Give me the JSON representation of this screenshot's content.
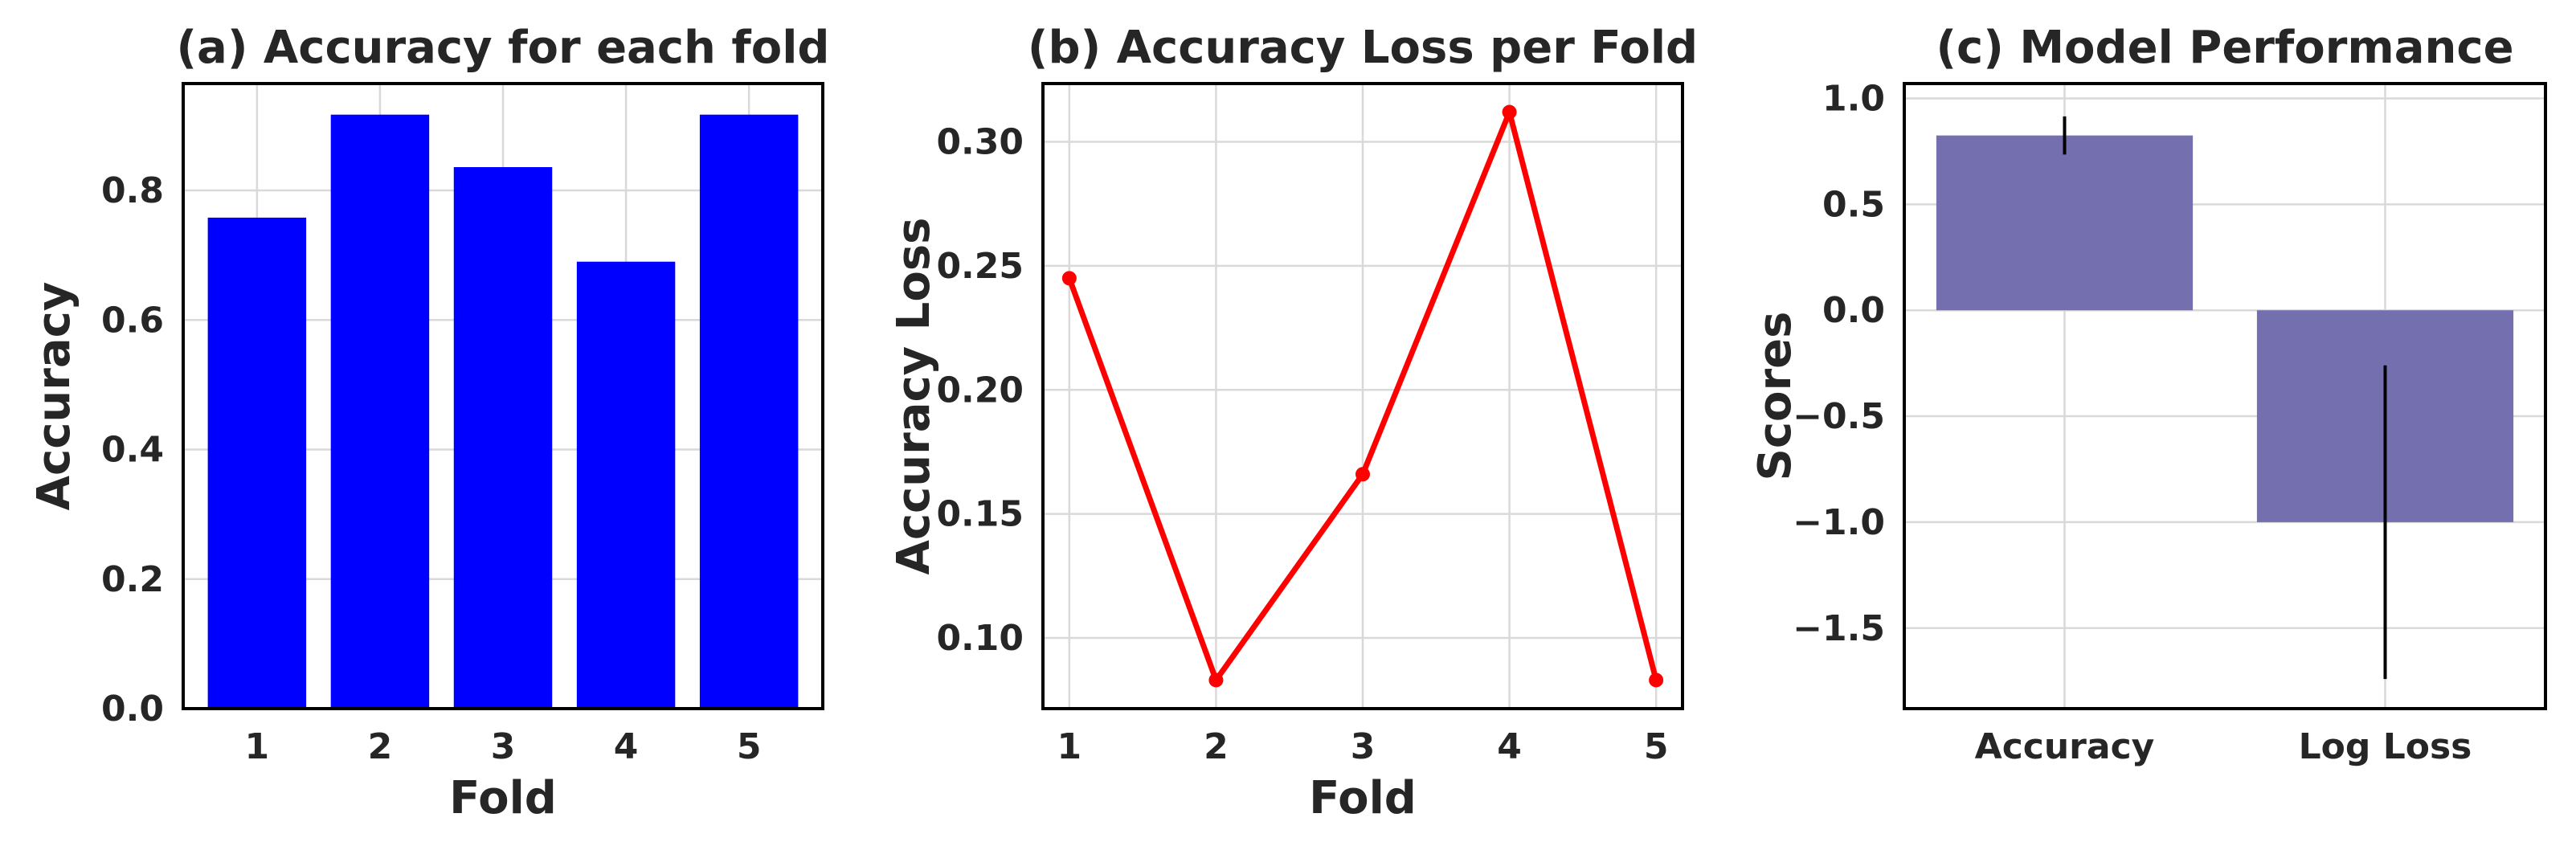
{
  "chart_data": [
    {
      "type": "bar",
      "title": "(a) Accuracy for each fold",
      "xlabel": "Fold",
      "ylabel": "Accuracy",
      "categories": [
        "1",
        "2",
        "3",
        "4",
        "5"
      ],
      "values": [
        0.758,
        0.917,
        0.836,
        0.69,
        0.917
      ],
      "ylim": [
        0,
        0.965
      ],
      "yticks": [
        0.0,
        0.2,
        0.4,
        0.6,
        0.8
      ],
      "ytick_labels": [
        "0.0",
        "0.2",
        "0.4",
        "0.6",
        "0.8"
      ],
      "color": "#0000ff",
      "grid": true
    },
    {
      "type": "line",
      "title": "(b) Accuracy Loss per Fold",
      "xlabel": "Fold",
      "ylabel": "Accuracy Loss",
      "x": [
        1,
        2,
        3,
        4,
        5
      ],
      "x_labels": [
        "1",
        "2",
        "3",
        "4",
        "5"
      ],
      "values": [
        0.245,
        0.083,
        0.166,
        0.312,
        0.083
      ],
      "xlim": [
        0.82,
        5.18
      ],
      "ylim": [
        0.0715,
        0.3235
      ],
      "yticks": [
        0.1,
        0.15,
        0.2,
        0.25,
        0.3
      ],
      "ytick_labels": [
        "0.10",
        "0.15",
        "0.20",
        "0.25",
        "0.30"
      ],
      "color": "#ff0000",
      "marker": "circle",
      "grid": true
    },
    {
      "type": "bar",
      "title": "(c) Model Performance",
      "xlabel": "",
      "ylabel": "Scores",
      "categories": [
        "Accuracy",
        "Log Loss"
      ],
      "values": [
        0.825,
        -1.0
      ],
      "errors": [
        0.09,
        0.74
      ],
      "ylim": [
        -1.88,
        1.07
      ],
      "yticks": [
        1.0,
        0.5,
        0.0,
        -0.5,
        -1.0,
        -1.5
      ],
      "ytick_labels": [
        "1.0",
        "0.5",
        "0.0",
        "−0.5",
        "−1.0",
        "−1.5"
      ],
      "color": "#7470b0",
      "grid": true
    }
  ]
}
